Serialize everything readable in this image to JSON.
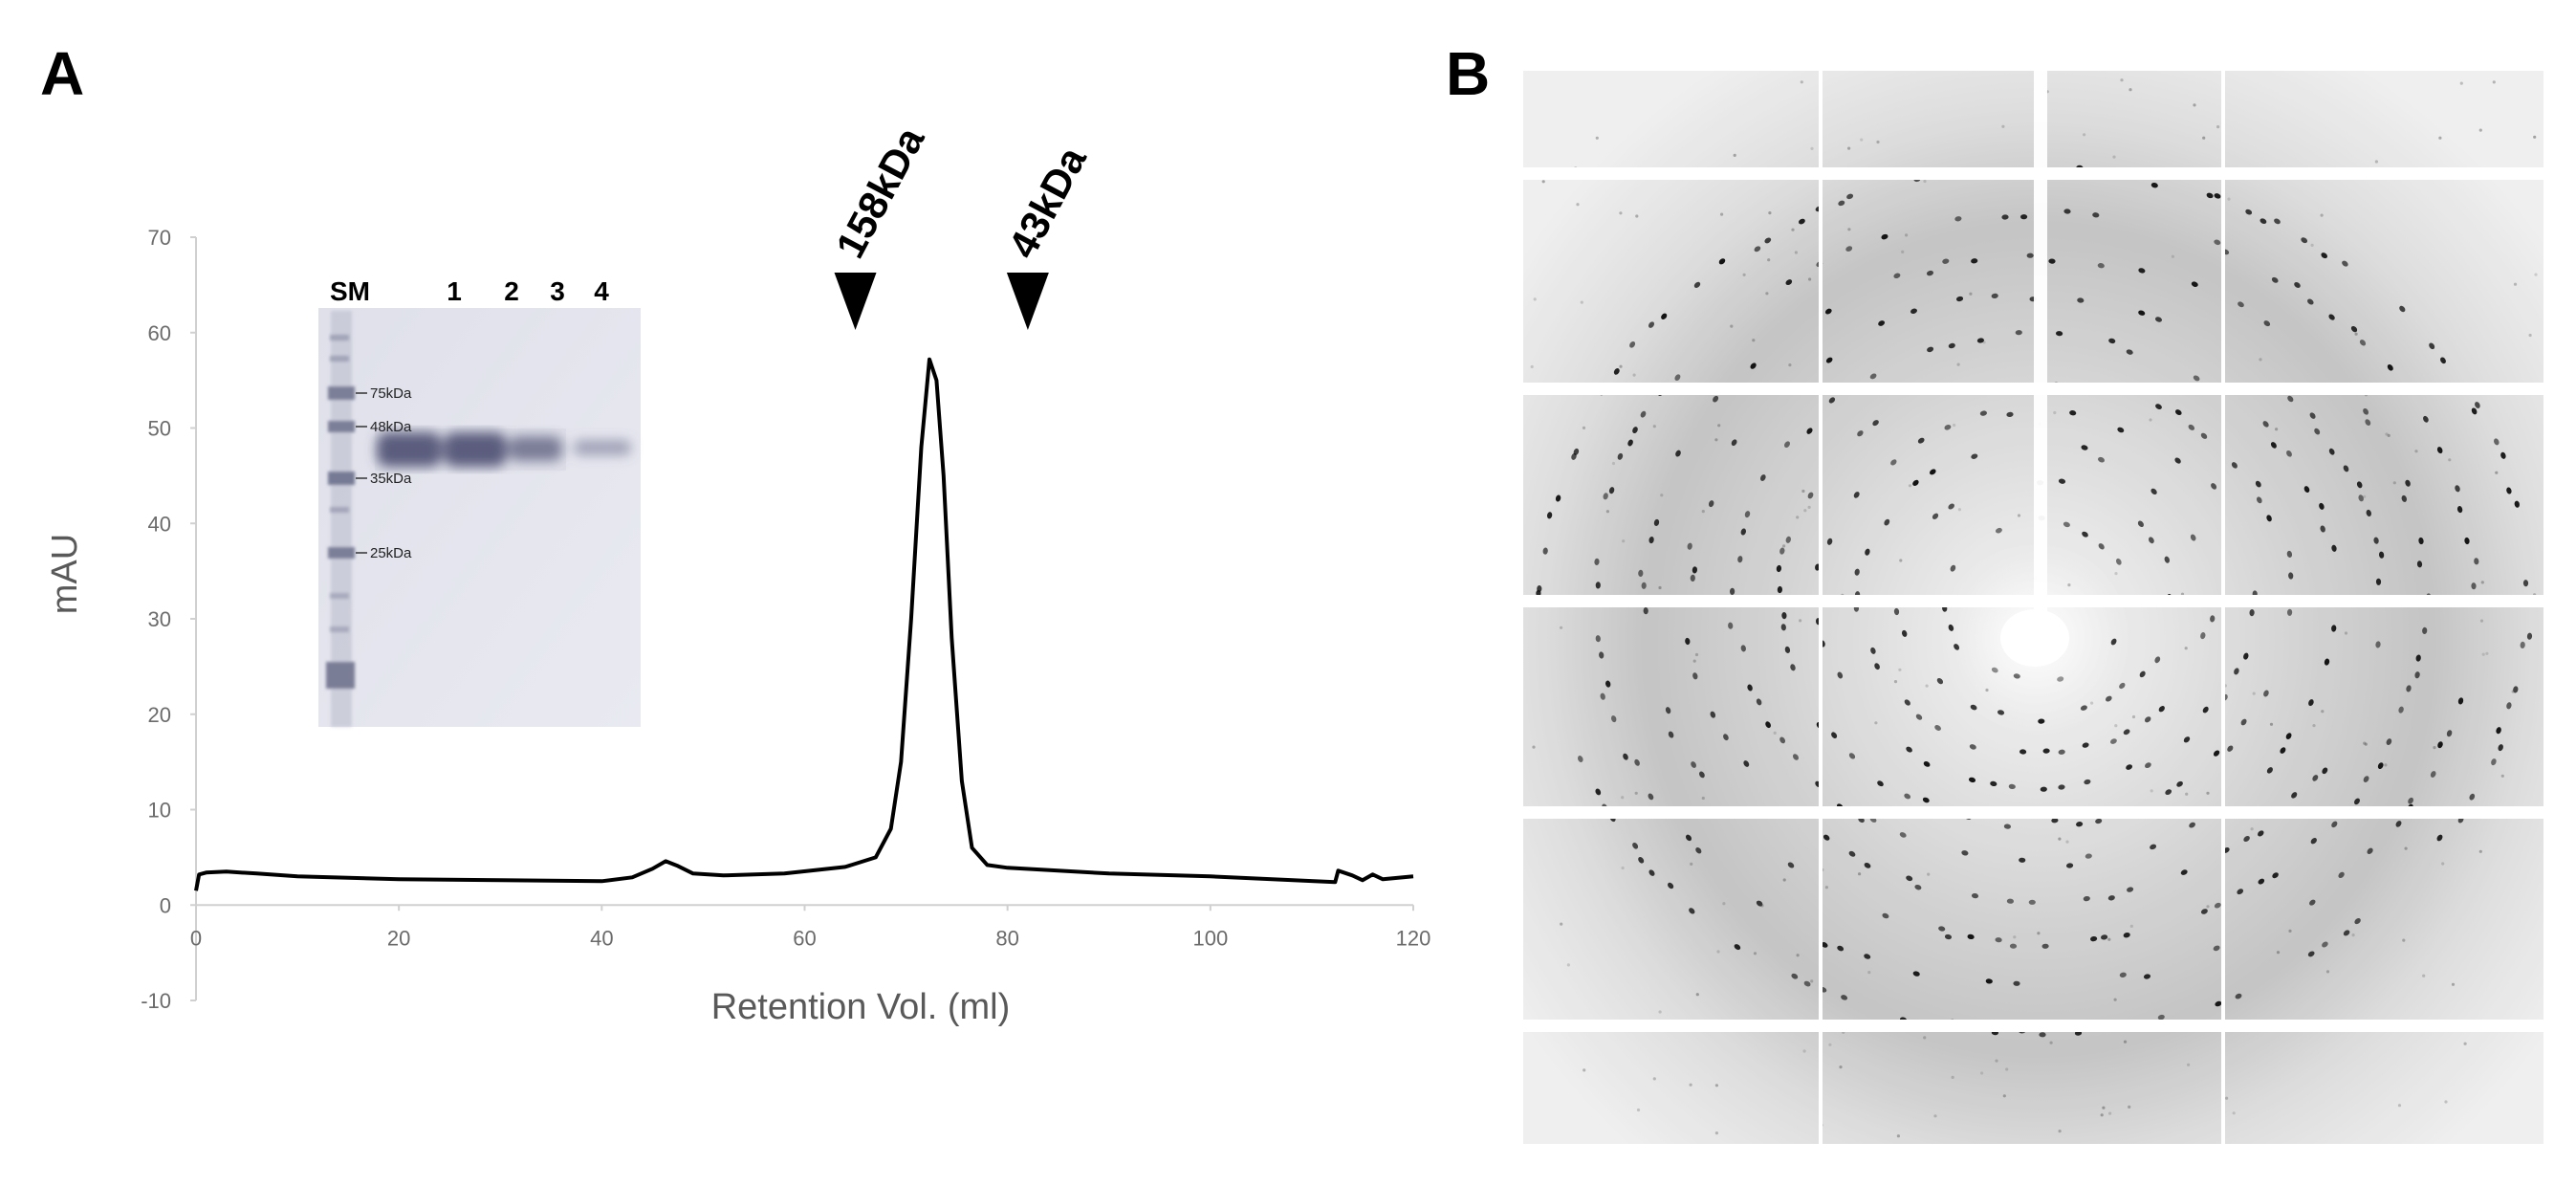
{
  "panels": {
    "a": "A",
    "b": "B"
  },
  "chart_data": {
    "type": "line",
    "xlabel": "Retention Vol. (ml)",
    "ylabel": "mAU",
    "xlim": [
      0,
      120
    ],
    "ylim": [
      -10,
      70
    ],
    "x_ticks": [
      0,
      20,
      40,
      60,
      80,
      100,
      120
    ],
    "y_ticks": [
      -10,
      0,
      10,
      20,
      30,
      40,
      50,
      60,
      70
    ],
    "grid": false,
    "series": [
      {
        "x": [
          0,
          0.3,
          1,
          3,
          6,
          10,
          20,
          30,
          40,
          43,
          45,
          46.3,
          47.5,
          49,
          52,
          58,
          64,
          67,
          68.5,
          69.5,
          70.5,
          71.5,
          72.3,
          73,
          73.7,
          74.5,
          75.5,
          76.5,
          78,
          80,
          90,
          100,
          112.3,
          112.6,
          114,
          115,
          116,
          117,
          118,
          120
        ],
        "y": [
          1.5,
          3.2,
          3.4,
          3.5,
          3.3,
          3.0,
          2.7,
          2.6,
          2.5,
          2.9,
          3.8,
          4.6,
          4.1,
          3.3,
          3.1,
          3.3,
          4.0,
          5.0,
          8.0,
          15,
          30,
          48,
          57.2,
          55,
          45,
          28,
          13,
          6.0,
          4.2,
          3.9,
          3.3,
          3.0,
          2.4,
          3.6,
          3.1,
          2.6,
          3.2,
          2.7,
          2.8,
          3.0
        ]
      }
    ],
    "annotations": [
      {
        "text": "158kDa",
        "x": 65
      },
      {
        "text": "43kDa",
        "x": 82
      }
    ]
  },
  "gel": {
    "lane_labels": [
      "SM",
      "1",
      "2",
      "3",
      "4"
    ],
    "markers": [
      "75kDa",
      "48kDa",
      "35kDa",
      "25kDa"
    ]
  }
}
